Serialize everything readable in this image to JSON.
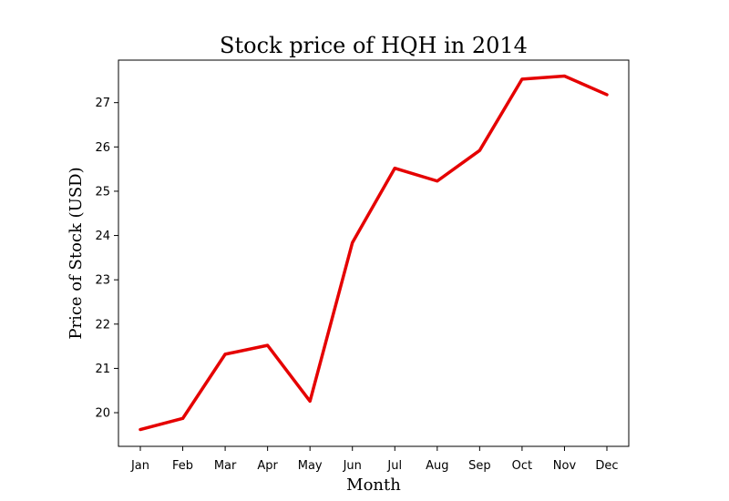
{
  "chart_data": {
    "type": "line",
    "title": "Stock price of HQH in 2014",
    "xlabel": "Month",
    "ylabel": "Price of Stock (USD)",
    "categories": [
      "Jan",
      "Feb",
      "Mar",
      "Apr",
      "May",
      "Jun",
      "Jul",
      "Aug",
      "Sep",
      "Oct",
      "Nov",
      "Dec"
    ],
    "series": [
      {
        "values": [
          19.62,
          19.87,
          21.32,
          21.52,
          20.26,
          23.84,
          25.52,
          25.23,
          25.92,
          27.53,
          27.6,
          27.18
        ],
        "color": "#e50000"
      }
    ],
    "ylim": [
      19.24,
      27.96
    ],
    "yticks": [
      20,
      21,
      22,
      23,
      24,
      25,
      26,
      27
    ],
    "grid": false,
    "legend": "none"
  }
}
